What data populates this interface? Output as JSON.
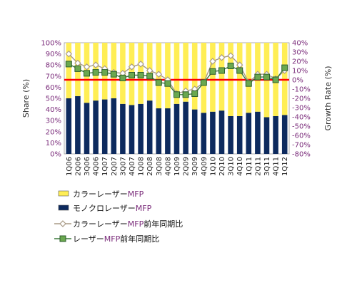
{
  "chart_data": {
    "type": "bar",
    "stacked": true,
    "categories": [
      "1Q06",
      "2Q06",
      "3Q06",
      "4Q06",
      "1Q07",
      "2Q07",
      "3Q07",
      "4Q07",
      "1Q08",
      "2Q08",
      "3Q08",
      "4Q08",
      "1Q09",
      "2Q09",
      "3Q09",
      "4Q09",
      "1Q10",
      "2Q10",
      "3Q10",
      "4Q10",
      "1Q11",
      "2Q11",
      "3Q11",
      "4Q11",
      "1Q12"
    ],
    "series": [
      {
        "name": "カラーレーザーMFP",
        "type": "bar",
        "axis": "left",
        "color": "#ffee55",
        "values": [
          50,
          48,
          54,
          52,
          51,
          50,
          55,
          56,
          55,
          52,
          59,
          59,
          55,
          53,
          60,
          63,
          62,
          61,
          66,
          66,
          63,
          62,
          67,
          66,
          65
        ]
      },
      {
        "name": "モノクロレーザーMFP",
        "type": "bar",
        "axis": "left",
        "color": "#0d2a5e",
        "values": [
          50,
          52,
          46,
          48,
          49,
          50,
          45,
          44,
          45,
          48,
          41,
          41,
          45,
          47,
          40,
          37,
          38,
          39,
          34,
          34,
          37,
          38,
          33,
          34,
          35
        ]
      },
      {
        "name": "カラーレーザーMFP前年同期比",
        "type": "line",
        "axis": "right",
        "color": "#a89a85",
        "marker": "diamond",
        "values": [
          28,
          18,
          14,
          16,
          12,
          8,
          7,
          14,
          17,
          10,
          6,
          0,
          -15,
          -12,
          -10,
          -3,
          20,
          24,
          26,
          16,
          -3,
          6,
          6,
          1,
          10
        ]
      },
      {
        "name": "レーザーMFP前年同期比",
        "type": "line",
        "axis": "right",
        "color": "#3c7a3c",
        "marker": "square",
        "values": [
          17,
          12,
          7,
          8,
          8,
          6,
          2,
          5,
          5,
          4,
          -3,
          -4,
          -16,
          -16,
          -15,
          -3,
          9,
          10,
          15,
          10,
          -4,
          3,
          3,
          0,
          13
        ]
      }
    ],
    "reference_line": {
      "axis": "right",
      "value": 0,
      "color": "#ff0000"
    },
    "ylabel": "Share (%)",
    "ylabel_right": "Growth Rate (%)",
    "ylim": [
      0,
      100
    ],
    "ylim_right": [
      -80,
      40
    ],
    "yticks": [
      "0%",
      "10%",
      "20%",
      "30%",
      "40%",
      "50%",
      "60%",
      "70%",
      "80%",
      "90%",
      "100%"
    ],
    "yticks_right": [
      "-80%",
      "-70%",
      "-60%",
      "-50%",
      "-40%",
      "-30%",
      "-20%",
      "-10%",
      "0%",
      "10%",
      "20%",
      "30%",
      "40%"
    ],
    "legend_position": "bottom-left",
    "grid": false
  },
  "legend": [
    {
      "name_main": "カラーレーザー",
      "name_mfp": "MFP",
      "name_suffix": ""
    },
    {
      "name_main": "モノクロレーザー",
      "name_mfp": "MFP",
      "name_suffix": ""
    },
    {
      "name_main": "カラーレーザー",
      "name_mfp": "MFP",
      "name_suffix": "前年同期比"
    },
    {
      "name_main": "レーザー",
      "name_mfp": "MFP",
      "name_suffix": "前年同期比"
    }
  ]
}
